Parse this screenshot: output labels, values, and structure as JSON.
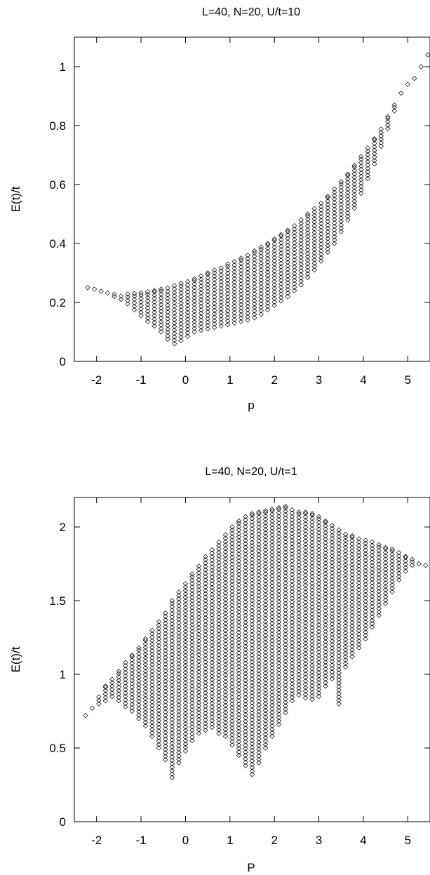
{
  "chart_data": [
    {
      "type": "scatter",
      "title": "L=40, N=20, U/t=10",
      "xlabel": "p",
      "ylabel": "E(t)/t",
      "xlim": [
        -2.5,
        5.5
      ],
      "ylim": [
        0,
        1.1
      ],
      "xticks": [
        "-2",
        "-1",
        "0",
        "1",
        "2",
        "3",
        "4",
        "5"
      ],
      "yticks": [
        "0",
        "0.2",
        "0.4",
        "0.6",
        "0.8",
        "1"
      ],
      "marker": "diamond",
      "grid": false,
      "columns": [
        {
          "x": -2.2,
          "ymin": 0.25,
          "ymax": 0.25
        },
        {
          "x": -2.05,
          "ymin": 0.245,
          "ymax": 0.245
        },
        {
          "x": -1.9,
          "ymin": 0.238,
          "ymax": 0.238
        },
        {
          "x": -1.75,
          "ymin": 0.232,
          "ymax": 0.232
        },
        {
          "x": -1.6,
          "ymin": 0.22,
          "ymax": 0.228
        },
        {
          "x": -1.45,
          "ymin": 0.21,
          "ymax": 0.225
        },
        {
          "x": -1.3,
          "ymin": 0.195,
          "ymax": 0.228
        },
        {
          "x": -1.15,
          "ymin": 0.175,
          "ymax": 0.23
        },
        {
          "x": -1.0,
          "ymin": 0.155,
          "ymax": 0.232
        },
        {
          "x": -0.85,
          "ymin": 0.135,
          "ymax": 0.236
        },
        {
          "x": -0.7,
          "ymin": 0.12,
          "ymax": 0.24
        },
        {
          "x": -0.55,
          "ymin": 0.1,
          "ymax": 0.245
        },
        {
          "x": -0.4,
          "ymin": 0.075,
          "ymax": 0.252
        },
        {
          "x": -0.25,
          "ymin": 0.06,
          "ymax": 0.258
        },
        {
          "x": -0.1,
          "ymin": 0.07,
          "ymax": 0.265
        },
        {
          "x": 0.05,
          "ymin": 0.085,
          "ymax": 0.272
        },
        {
          "x": 0.2,
          "ymin": 0.1,
          "ymax": 0.28
        },
        {
          "x": 0.35,
          "ymin": 0.105,
          "ymax": 0.29
        },
        {
          "x": 0.5,
          "ymin": 0.11,
          "ymax": 0.3
        },
        {
          "x": 0.65,
          "ymin": 0.115,
          "ymax": 0.31
        },
        {
          "x": 0.8,
          "ymin": 0.12,
          "ymax": 0.32
        },
        {
          "x": 0.95,
          "ymin": 0.125,
          "ymax": 0.33
        },
        {
          "x": 1.1,
          "ymin": 0.13,
          "ymax": 0.34
        },
        {
          "x": 1.25,
          "ymin": 0.135,
          "ymax": 0.35
        },
        {
          "x": 1.4,
          "ymin": 0.14,
          "ymax": 0.362
        },
        {
          "x": 1.55,
          "ymin": 0.148,
          "ymax": 0.375
        },
        {
          "x": 1.7,
          "ymin": 0.16,
          "ymax": 0.388
        },
        {
          "x": 1.85,
          "ymin": 0.175,
          "ymax": 0.4
        },
        {
          "x": 2.0,
          "ymin": 0.19,
          "ymax": 0.415
        },
        {
          "x": 2.15,
          "ymin": 0.205,
          "ymax": 0.43
        },
        {
          "x": 2.3,
          "ymin": 0.22,
          "ymax": 0.445
        },
        {
          "x": 2.45,
          "ymin": 0.24,
          "ymax": 0.462
        },
        {
          "x": 2.6,
          "ymin": 0.26,
          "ymax": 0.48
        },
        {
          "x": 2.75,
          "ymin": 0.285,
          "ymax": 0.5
        },
        {
          "x": 2.9,
          "ymin": 0.31,
          "ymax": 0.52
        },
        {
          "x": 3.05,
          "ymin": 0.34,
          "ymax": 0.54
        },
        {
          "x": 3.2,
          "ymin": 0.37,
          "ymax": 0.56
        },
        {
          "x": 3.35,
          "ymin": 0.4,
          "ymax": 0.585
        },
        {
          "x": 3.5,
          "ymin": 0.44,
          "ymax": 0.61
        },
        {
          "x": 3.65,
          "ymin": 0.48,
          "ymax": 0.635
        },
        {
          "x": 3.8,
          "ymin": 0.52,
          "ymax": 0.665
        },
        {
          "x": 3.95,
          "ymin": 0.57,
          "ymax": 0.695
        },
        {
          "x": 4.1,
          "ymin": 0.62,
          "ymax": 0.725
        },
        {
          "x": 4.25,
          "ymin": 0.67,
          "ymax": 0.755
        },
        {
          "x": 4.4,
          "ymin": 0.73,
          "ymax": 0.79
        },
        {
          "x": 4.55,
          "ymin": 0.79,
          "ymax": 0.83
        },
        {
          "x": 4.7,
          "ymin": 0.85,
          "ymax": 0.87
        },
        {
          "x": 4.85,
          "ymin": 0.91,
          "ymax": 0.91
        },
        {
          "x": 5.0,
          "ymin": 0.94,
          "ymax": 0.94
        },
        {
          "x": 5.15,
          "ymin": 0.96,
          "ymax": 0.96
        },
        {
          "x": 5.3,
          "ymin": 1.0,
          "ymax": 1.0
        },
        {
          "x": 5.45,
          "ymin": 1.04,
          "ymax": 1.04
        }
      ]
    },
    {
      "type": "scatter",
      "title": "L=40, N=20, U/t=1",
      "xlabel": "P",
      "ylabel": "E(t)/t",
      "xlim": [
        -2.5,
        5.5
      ],
      "ylim": [
        0,
        2.2
      ],
      "xticks": [
        "-2",
        "-1",
        "0",
        "1",
        "2",
        "3",
        "4",
        "5"
      ],
      "yticks": [
        "0",
        "0.5",
        "1",
        "1.5",
        "2"
      ],
      "marker": "diamond",
      "grid": false,
      "columns": [
        {
          "x": -2.25,
          "ymin": 0.72,
          "ymax": 0.72
        },
        {
          "x": -2.1,
          "ymin": 0.77,
          "ymax": 0.77
        },
        {
          "x": -1.95,
          "ymin": 0.8,
          "ymax": 0.85
        },
        {
          "x": -1.8,
          "ymin": 0.82,
          "ymax": 0.92
        },
        {
          "x": -1.65,
          "ymin": 0.85,
          "ymax": 0.97
        },
        {
          "x": -1.5,
          "ymin": 0.82,
          "ymax": 1.02
        },
        {
          "x": -1.35,
          "ymin": 0.78,
          "ymax": 1.08
        },
        {
          "x": -1.2,
          "ymin": 0.75,
          "ymax": 1.13
        },
        {
          "x": -1.05,
          "ymin": 0.7,
          "ymax": 1.18
        },
        {
          "x": -0.9,
          "ymin": 0.65,
          "ymax": 1.24
        },
        {
          "x": -0.75,
          "ymin": 0.58,
          "ymax": 1.3
        },
        {
          "x": -0.6,
          "ymin": 0.5,
          "ymax": 1.36
        },
        {
          "x": -0.45,
          "ymin": 0.42,
          "ymax": 1.42
        },
        {
          "x": -0.3,
          "ymin": 0.3,
          "ymax": 1.5
        },
        {
          "x": -0.15,
          "ymin": 0.4,
          "ymax": 1.56
        },
        {
          "x": 0.0,
          "ymin": 0.48,
          "ymax": 1.62
        },
        {
          "x": 0.15,
          "ymin": 0.55,
          "ymax": 1.68
        },
        {
          "x": 0.3,
          "ymin": 0.6,
          "ymax": 1.74
        },
        {
          "x": 0.45,
          "ymin": 0.62,
          "ymax": 1.8
        },
        {
          "x": 0.6,
          "ymin": 0.64,
          "ymax": 1.85
        },
        {
          "x": 0.75,
          "ymin": 0.6,
          "ymax": 1.9
        },
        {
          "x": 0.9,
          "ymin": 0.58,
          "ymax": 1.95
        },
        {
          "x": 1.05,
          "ymin": 0.52,
          "ymax": 2.0
        },
        {
          "x": 1.2,
          "ymin": 0.45,
          "ymax": 2.04
        },
        {
          "x": 1.35,
          "ymin": 0.38,
          "ymax": 2.07
        },
        {
          "x": 1.5,
          "ymin": 0.32,
          "ymax": 2.09
        },
        {
          "x": 1.65,
          "ymin": 0.4,
          "ymax": 2.1
        },
        {
          "x": 1.8,
          "ymin": 0.5,
          "ymax": 2.11
        },
        {
          "x": 1.95,
          "ymin": 0.58,
          "ymax": 2.12
        },
        {
          "x": 2.1,
          "ymin": 0.66,
          "ymax": 2.13
        },
        {
          "x": 2.25,
          "ymin": 0.74,
          "ymax": 2.14
        },
        {
          "x": 2.4,
          "ymin": 0.82,
          "ymax": 2.12
        },
        {
          "x": 2.55,
          "ymin": 0.86,
          "ymax": 2.1
        },
        {
          "x": 2.7,
          "ymin": 0.84,
          "ymax": 2.1
        },
        {
          "x": 2.85,
          "ymin": 0.83,
          "ymax": 2.09
        },
        {
          "x": 3.0,
          "ymin": 0.85,
          "ymax": 2.07
        },
        {
          "x": 3.15,
          "ymin": 0.92,
          "ymax": 2.04
        },
        {
          "x": 3.3,
          "ymin": 0.97,
          "ymax": 2.01
        },
        {
          "x": 3.45,
          "ymin": 0.8,
          "ymax": 1.98
        },
        {
          "x": 3.6,
          "ymin": 1.05,
          "ymax": 1.95
        },
        {
          "x": 3.75,
          "ymin": 1.12,
          "ymax": 1.94
        },
        {
          "x": 3.9,
          "ymin": 1.18,
          "ymax": 1.92
        },
        {
          "x": 4.05,
          "ymin": 1.24,
          "ymax": 1.91
        },
        {
          "x": 4.2,
          "ymin": 1.32,
          "ymax": 1.9
        },
        {
          "x": 4.35,
          "ymin": 1.4,
          "ymax": 1.88
        },
        {
          "x": 4.5,
          "ymin": 1.48,
          "ymax": 1.86
        },
        {
          "x": 4.65,
          "ymin": 1.56,
          "ymax": 1.85
        },
        {
          "x": 4.8,
          "ymin": 1.64,
          "ymax": 1.83
        },
        {
          "x": 4.95,
          "ymin": 1.7,
          "ymax": 1.8
        },
        {
          "x": 5.1,
          "ymin": 1.74,
          "ymax": 1.78
        },
        {
          "x": 5.25,
          "ymin": 1.75,
          "ymax": 1.75
        },
        {
          "x": 5.4,
          "ymin": 1.74,
          "ymax": 1.74
        }
      ]
    }
  ]
}
